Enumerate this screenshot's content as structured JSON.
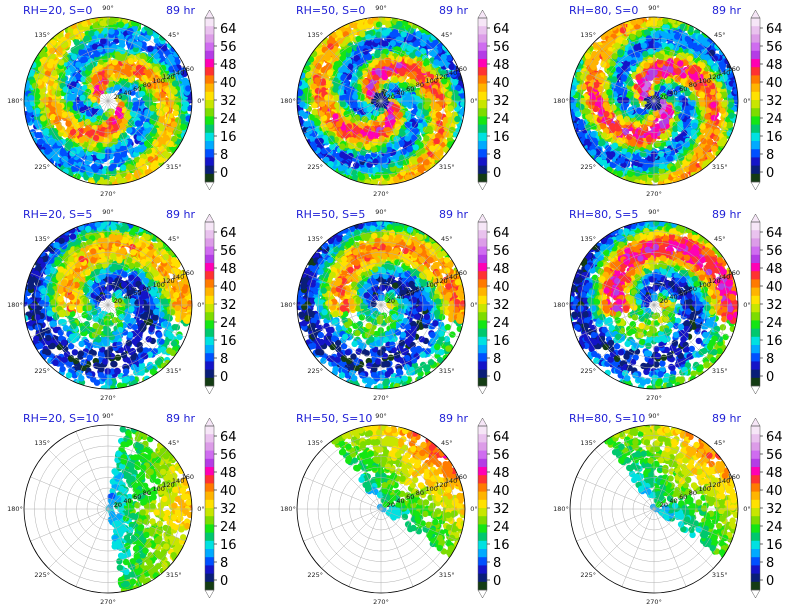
{
  "figure": {
    "time_label": "89 hr",
    "angle_ticks": [
      "90°",
      "45°",
      "0°",
      "315°",
      "270°",
      "225°",
      "180°",
      "135°"
    ],
    "radius_ticks": [
      "20",
      "40",
      "60",
      "80",
      "100",
      "120",
      "140",
      "160"
    ]
  },
  "colorbar": {
    "ticks": [
      "64",
      "56",
      "48",
      "40",
      "32",
      "24",
      "16",
      "8",
      "0"
    ],
    "colors": [
      "#f6e6f7",
      "#e9c2ee",
      "#dc9ce8",
      "#cf6cf0",
      "#b43ce6",
      "#ff00b4",
      "#ff3232",
      "#ff7a00",
      "#ffb400",
      "#ffe100",
      "#c8e600",
      "#7ddc00",
      "#14e614",
      "#00c86e",
      "#00e1e1",
      "#00aaff",
      "#0050ff",
      "#1414c8",
      "#0a1e78",
      "#143c14"
    ]
  },
  "chart_data": [
    {
      "type": "heatmap",
      "title": "RH=20, S=0",
      "time": "89 hr",
      "pattern": "spiral",
      "intensity": 0.85,
      "eye_radius": 0.12,
      "focus_quadrant": "none"
    },
    {
      "type": "heatmap",
      "title": "RH=50, S=0",
      "time": "89 hr",
      "pattern": "spiral",
      "intensity": 0.95,
      "eye_radius": 0.11,
      "focus_quadrant": "none"
    },
    {
      "type": "heatmap",
      "title": "RH=80, S=0",
      "time": "89 hr",
      "pattern": "spiral",
      "intensity": 1.0,
      "eye_radius": 0.1,
      "focus_quadrant": "none"
    },
    {
      "type": "heatmap",
      "title": "RH=20, S=5",
      "time": "89 hr",
      "pattern": "asymmetric",
      "intensity": 0.75,
      "eye_radius": 0.1,
      "focus_quadrant": "upper"
    },
    {
      "type": "heatmap",
      "title": "RH=50, S=5",
      "time": "89 hr",
      "pattern": "asymmetric",
      "intensity": 0.8,
      "eye_radius": 0.08,
      "focus_quadrant": "upper"
    },
    {
      "type": "heatmap",
      "title": "RH=80, S=5",
      "time": "89 hr",
      "pattern": "asymmetric",
      "intensity": 0.95,
      "eye_radius": 0.08,
      "focus_quadrant": "upper"
    },
    {
      "type": "heatmap",
      "title": "RH=20, S=10",
      "time": "89 hr",
      "pattern": "scattered",
      "intensity": 0.55,
      "eye_radius": 0.0,
      "focus_quadrant": "east"
    },
    {
      "type": "heatmap",
      "title": "RH=50, S=10",
      "time": "89 hr",
      "pattern": "scattered",
      "intensity": 0.65,
      "eye_radius": 0.0,
      "focus_quadrant": "northeast"
    },
    {
      "type": "heatmap",
      "title": "RH=80, S=10",
      "time": "89 hr",
      "pattern": "scattered",
      "intensity": 0.6,
      "eye_radius": 0.0,
      "focus_quadrant": "northeast"
    }
  ]
}
